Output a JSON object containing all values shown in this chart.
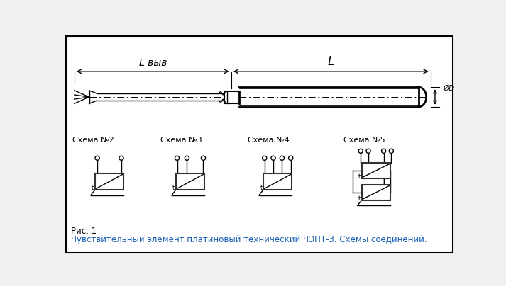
{
  "bg_color": "#f0f0f0",
  "border_color": "#000000",
  "line_color": "#000000",
  "blue_text_color": "#1a5fb4",
  "title_text": "Рис. 1",
  "caption_text": "Чувствительный элемент платиновый технический ЧЭПТ-3. Схемы соединений.",
  "schema_labels": [
    "Схема №2",
    "Схема №3",
    "Схема №4",
    "Схема №5"
  ],
  "label_L_vyv": "L выв",
  "label_L": "L",
  "label_D": "ØD"
}
